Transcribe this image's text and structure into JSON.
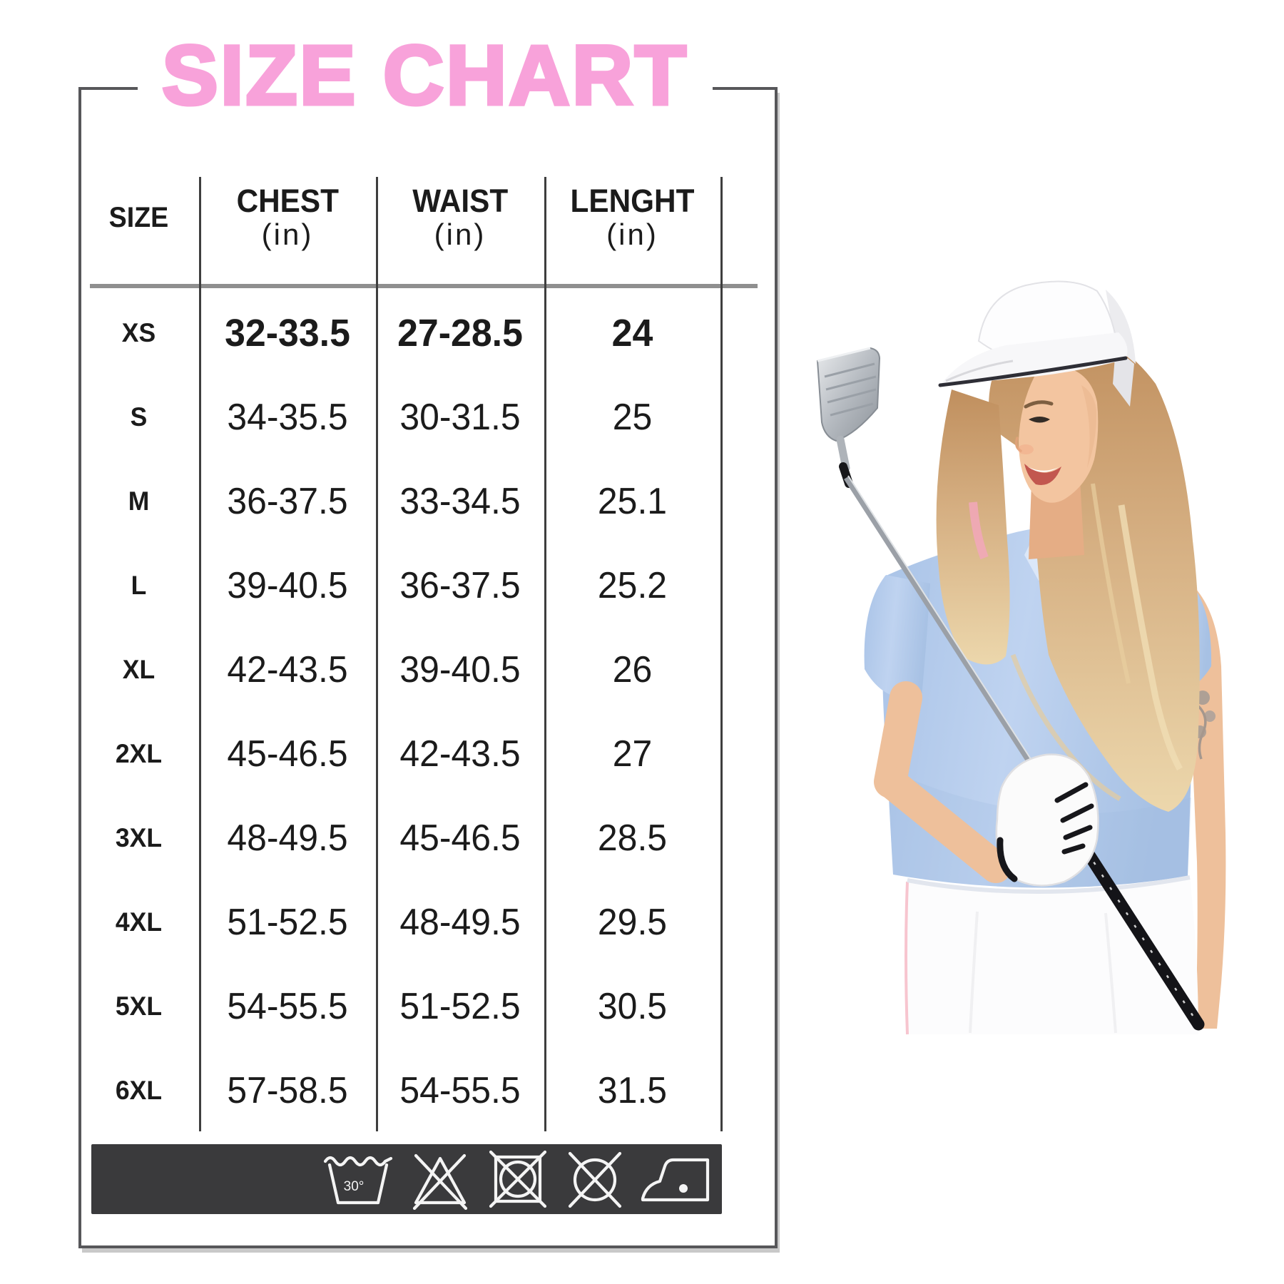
{
  "title": "SIZE CHART",
  "colors": {
    "title_pink": "#f8a2da",
    "frame_border": "#57575a",
    "care_bar_bg": "#3a3a3c",
    "polo_blue": "#b5cdec"
  },
  "table": {
    "columns": [
      {
        "label": "SIZE",
        "unit": ""
      },
      {
        "label": "CHEST",
        "unit": "(in)"
      },
      {
        "label": "WAIST",
        "unit": "(in)"
      },
      {
        "label": "LENGHT",
        "unit": "(in)"
      }
    ],
    "rows": [
      {
        "size": "XS",
        "chest": "32-33.5",
        "waist": "27-28.5",
        "length": "24",
        "bold": true
      },
      {
        "size": "S",
        "chest": "34-35.5",
        "waist": "30-31.5",
        "length": "25",
        "bold": false
      },
      {
        "size": "M",
        "chest": "36-37.5",
        "waist": "33-34.5",
        "length": "25.1",
        "bold": false
      },
      {
        "size": "L",
        "chest": "39-40.5",
        "waist": "36-37.5",
        "length": "25.2",
        "bold": false
      },
      {
        "size": "XL",
        "chest": "42-43.5",
        "waist": "39-40.5",
        "length": "26",
        "bold": false
      },
      {
        "size": "2XL",
        "chest": "45-46.5",
        "waist": "42-43.5",
        "length": "27",
        "bold": false
      },
      {
        "size": "3XL",
        "chest": "48-49.5",
        "waist": "45-46.5",
        "length": "28.5",
        "bold": false
      },
      {
        "size": "4XL",
        "chest": "51-52.5",
        "waist": "48-49.5",
        "length": "29.5",
        "bold": false
      },
      {
        "size": "5XL",
        "chest": "54-55.5",
        "waist": "51-52.5",
        "length": "30.5",
        "bold": false
      },
      {
        "size": "6XL",
        "chest": "57-58.5",
        "waist": "54-55.5",
        "length": "31.5",
        "bold": false
      }
    ]
  },
  "care_bar": {
    "wash_temp_label": "30°",
    "symbols": [
      "wash-30-icon",
      "do-not-bleach-icon",
      "do-not-tumble-dry-icon",
      "do-not-dry-clean-icon",
      "iron-low-icon"
    ]
  },
  "illustration": {
    "name": "woman-golfer-photo"
  }
}
